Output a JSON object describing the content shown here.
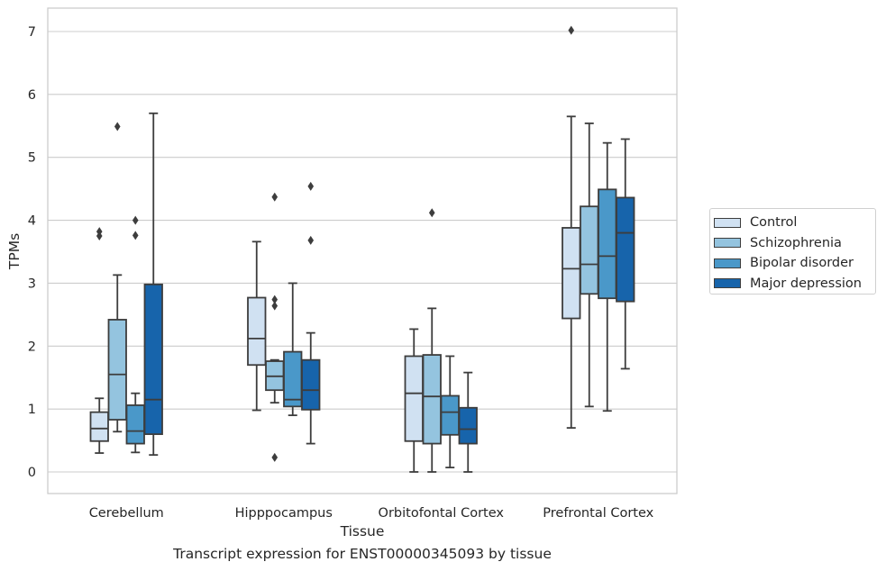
{
  "chart_data": {
    "type": "box",
    "xlabel": "Tissue",
    "ylabel": "TPMs",
    "caption": "Transcript expression for ENST00000345093 by tissue",
    "ylim": [
      -0.35,
      7.4
    ],
    "yticks": [
      0,
      1,
      2,
      3,
      4,
      5,
      6,
      7
    ],
    "grid": true,
    "legend_placement": "right",
    "categories": [
      "Cerebellum",
      "Hipppocampus",
      "Orbitofontal Cortex",
      "Prefrontal Cortex"
    ],
    "series": [
      {
        "name": "Control",
        "color": "#d0e1f2",
        "boxes": [
          {
            "min": 0.3,
            "q1": 0.49,
            "median": 0.69,
            "q3": 0.95,
            "max": 1.17,
            "outliers": [
              3.82,
              3.75
            ]
          },
          {
            "min": 0.98,
            "q1": 1.7,
            "median": 2.12,
            "q3": 2.77,
            "max": 3.66,
            "outliers": []
          },
          {
            "min": 0.0,
            "q1": 0.49,
            "median": 1.25,
            "q3": 1.84,
            "max": 2.27,
            "outliers": []
          },
          {
            "min": 0.7,
            "q1": 2.44,
            "median": 3.23,
            "q3": 3.88,
            "max": 5.65,
            "outliers": [
              7.02
            ]
          }
        ]
      },
      {
        "name": "Schizophrenia",
        "color": "#94c4df",
        "boxes": [
          {
            "min": 0.64,
            "q1": 0.83,
            "median": 1.55,
            "q3": 2.42,
            "max": 3.13,
            "outliers": [
              5.49
            ]
          },
          {
            "min": 1.1,
            "q1": 1.3,
            "median": 1.52,
            "q3": 1.76,
            "max": 1.78,
            "outliers": [
              4.37,
              2.74,
              2.64,
              0.23
            ]
          },
          {
            "min": 0.0,
            "q1": 0.45,
            "median": 1.2,
            "q3": 1.86,
            "max": 2.6,
            "outliers": [
              4.12
            ]
          },
          {
            "min": 1.04,
            "q1": 2.83,
            "median": 3.3,
            "q3": 4.22,
            "max": 5.54,
            "outliers": []
          }
        ]
      },
      {
        "name": "Bipolar disorder",
        "color": "#4a98c9",
        "boxes": [
          {
            "min": 0.31,
            "q1": 0.45,
            "median": 0.65,
            "q3": 1.06,
            "max": 1.25,
            "outliers": [
              4.0,
              3.76
            ]
          },
          {
            "min": 0.9,
            "q1": 1.04,
            "median": 1.15,
            "q3": 1.91,
            "max": 3.0,
            "outliers": []
          },
          {
            "min": 0.07,
            "q1": 0.59,
            "median": 0.95,
            "q3": 1.21,
            "max": 1.84,
            "outliers": []
          },
          {
            "min": 0.97,
            "q1": 2.76,
            "median": 3.43,
            "q3": 4.49,
            "max": 5.23,
            "outliers": []
          }
        ]
      },
      {
        "name": "Major depression",
        "color": "#1764ab",
        "boxes": [
          {
            "min": 0.27,
            "q1": 0.6,
            "median": 1.15,
            "q3": 2.98,
            "max": 5.7,
            "outliers": []
          },
          {
            "min": 0.45,
            "q1": 0.99,
            "median": 1.3,
            "q3": 1.78,
            "max": 2.21,
            "outliers": [
              4.54,
              3.68
            ]
          },
          {
            "min": 0.0,
            "q1": 0.45,
            "median": 0.68,
            "q3": 1.02,
            "max": 1.58,
            "outliers": []
          },
          {
            "min": 1.64,
            "q1": 2.71,
            "median": 3.8,
            "q3": 4.36,
            "max": 5.29,
            "outliers": []
          }
        ]
      }
    ]
  }
}
